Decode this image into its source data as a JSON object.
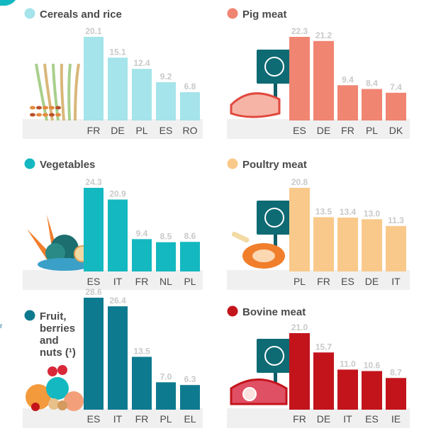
{
  "chart_data": [
    {
      "type": "bar",
      "title": "Cereals and rice",
      "color": "#a4e4ea",
      "dot_color": "#a4e4ea",
      "icon": "cereals-icon",
      "categories": [
        "FR",
        "DE",
        "PL",
        "ES",
        "RO"
      ],
      "values": [
        20.1,
        15.1,
        12.4,
        9.2,
        6.8
      ],
      "labels": [
        "20.1",
        "15.1",
        "12.4",
        "9.2",
        "6.8"
      ],
      "ylim": [
        0,
        25
      ]
    },
    {
      "type": "bar",
      "title": "Pig meat",
      "color": "#f08572",
      "dot_color": "#f08572",
      "icon": "pig-sign-icon",
      "categories": [
        "ES",
        "DE",
        "FR",
        "PL",
        "DK"
      ],
      "values": [
        22.3,
        21.2,
        9.4,
        8.4,
        7.4
      ],
      "labels": [
        "22.3",
        "21.2",
        "9.4",
        "8.4",
        "7.4"
      ],
      "ylim": [
        0,
        25
      ]
    },
    {
      "type": "bar",
      "title": "Vegetables",
      "color": "#14b8c0",
      "dot_color": "#14b8c0",
      "icon": "vegetables-icon",
      "categories": [
        "ES",
        "IT",
        "FR",
        "NL",
        "PL"
      ],
      "values": [
        24.3,
        20.9,
        9.4,
        8.5,
        8.6
      ],
      "labels": [
        "24.3",
        "20.9",
        "9.4",
        "8.5",
        "8.6"
      ],
      "ylim": [
        0,
        25
      ]
    },
    {
      "type": "bar",
      "title": "Poultry meat",
      "color": "#f9c98b",
      "dot_color": "#f9c98b",
      "icon": "chicken-sign-icon",
      "categories": [
        "PL",
        "FR",
        "ES",
        "DE",
        "IT"
      ],
      "values": [
        20.8,
        13.5,
        13.4,
        13.0,
        11.3
      ],
      "labels": [
        "20.8",
        "13.5",
        "13.4",
        "13.0",
        "11.3"
      ],
      "ylim": [
        0,
        25
      ]
    },
    {
      "type": "bar",
      "title_lines": [
        "Fruit,",
        "berries",
        "and",
        "nuts (¹)"
      ],
      "color": "#0e7a8f",
      "dot_color": "#0e7a8f",
      "icon": "fruits-icon",
      "categories": [
        "ES",
        "IT",
        "FR",
        "PL",
        "EL"
      ],
      "values": [
        28.6,
        26.4,
        13.5,
        7.0,
        6.3
      ],
      "labels": [
        "28.6",
        "26.4",
        "13.5",
        "7.0",
        "6.3"
      ],
      "ylim": [
        0,
        30
      ]
    },
    {
      "type": "bar",
      "title": "Bovine meat",
      "color": "#c3141c",
      "dot_color": "#c3141c",
      "icon": "cow-sign-icon",
      "categories": [
        "FR",
        "DE",
        "IT",
        "ES",
        "IE"
      ],
      "values": [
        21.0,
        15.7,
        11.0,
        10.6,
        8.7
      ],
      "labels": [
        "21.0",
        "15.7",
        "11.0",
        "10.6",
        "8.7"
      ],
      "ylim": [
        0,
        25
      ]
    }
  ],
  "colors": {
    "baseline_panel": "#f0f0f0",
    "value_label": "#c9c9c9",
    "category_label": "#4a4a4a",
    "corner_accent": "#14b8c0"
  },
  "edge_glyph": "r"
}
